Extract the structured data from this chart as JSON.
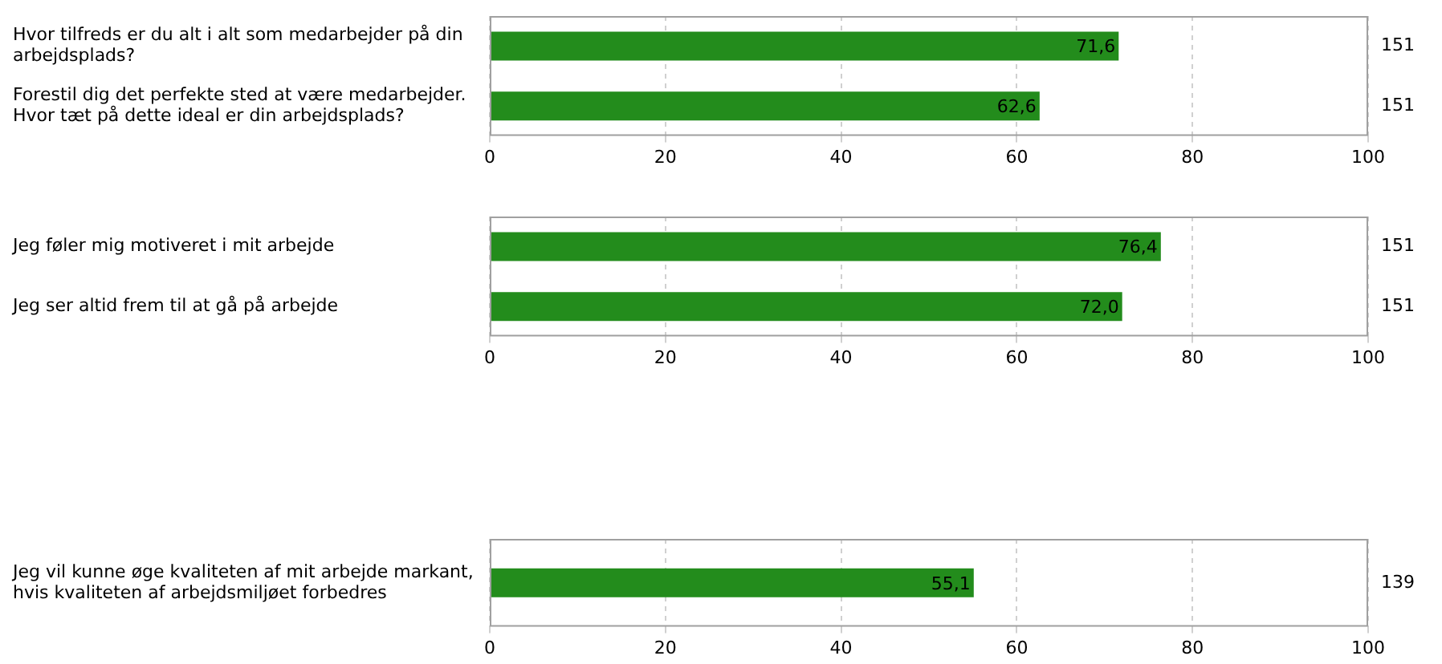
{
  "chart_data": [
    {
      "type": "bar",
      "orientation": "horizontal",
      "categories": [
        "Hvor tilfreds er du alt i alt som medarbejder på din arbejdsplads?",
        "Forestil dig det perfekte sted at være medarbejder. Hvor tæt på dette ideal er din arbejdsplads?"
      ],
      "values": [
        71.6,
        62.6
      ],
      "value_labels": [
        "71,6",
        "62,6"
      ],
      "color": "#238c1c",
      "xlim": [
        0,
        100
      ],
      "xticks": [
        0,
        20,
        40,
        60,
        80,
        100
      ],
      "grid": "x",
      "annotations": [
        "151",
        "151"
      ]
    },
    {
      "type": "bar",
      "orientation": "horizontal",
      "categories": [
        "Jeg føler mig motiveret i mit arbejde",
        "Jeg ser altid frem til at gå på arbejde"
      ],
      "values": [
        76.4,
        72.0
      ],
      "value_labels": [
        "76,4",
        "72,0"
      ],
      "color": "#238c1c",
      "xlim": [
        0,
        100
      ],
      "xticks": [
        0,
        20,
        40,
        60,
        80,
        100
      ],
      "grid": "x",
      "annotations": [
        "151",
        "151"
      ]
    },
    {
      "type": "bar",
      "orientation": "horizontal",
      "categories": [
        "Jeg vil kunne øge kvaliteten af mit arbejde markant, hvis kvaliteten af arbejdsmiljøet forbedres"
      ],
      "values": [
        55.1
      ],
      "value_labels": [
        "55,1"
      ],
      "color": "#238c1c",
      "xlim": [
        0,
        100
      ],
      "xticks": [
        0,
        20,
        40,
        60,
        80,
        100
      ],
      "grid": "x",
      "annotations": [
        "139"
      ]
    }
  ]
}
